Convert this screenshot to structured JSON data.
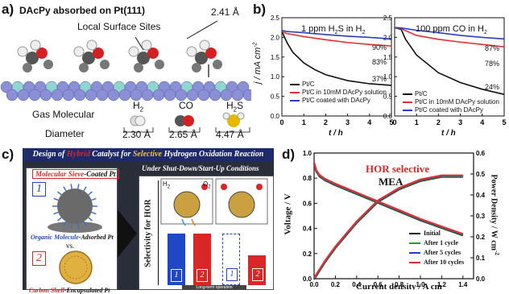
{
  "panel_a": {
    "label": "a)",
    "title": "DAcPy absorbed on Pt(111)",
    "site_label": "Local Surface Sites",
    "distance": "2.41 Å",
    "gas_row_label": "Gas Molecular",
    "diameter_row_label": "Diameter",
    "molecules": [
      {
        "name": "H",
        "sub": "2",
        "diameter": "2.30 Å"
      },
      {
        "name": "CO",
        "sub": "",
        "diameter": "2.65 Å"
      },
      {
        "name": "H",
        "sub": "2",
        "tail": "S",
        "diameter": "4.47 Å"
      }
    ],
    "colors": {
      "pt_atom": "#8a8fd6",
      "pt_light": "#8fd6cf",
      "oxygen": "#d42020",
      "carbon": "#555555",
      "sulfur": "#e6b800"
    }
  },
  "panel_b": {
    "label": "b)",
    "ylabel": "j / mA cm",
    "ylabel_sup": "-2",
    "chart_data": [
      {
        "type": "line",
        "title": "1 ppm H2S in H2",
        "title_parts": {
          "a": "1 ppm H",
          "b": "2",
          "c": "S in H",
          "d": "2"
        },
        "xlabel": "t / h",
        "x_ticks": [
          0,
          1,
          2,
          3,
          4,
          5
        ],
        "y_ticks": [
          0.0,
          0.5,
          1.0,
          1.5,
          2.0,
          2.5
        ],
        "xlim": [
          0,
          5
        ],
        "ylim": [
          0,
          2.5
        ],
        "series": [
          {
            "name": "Pt/C",
            "color": "#111111",
            "x": [
              0,
              0.25,
              0.5,
              1,
              1.5,
              2,
              3,
              4,
              5
            ],
            "y": [
              2.15,
              1.85,
              1.62,
              1.35,
              1.18,
              1.05,
              0.9,
              0.82,
              0.78
            ]
          },
          {
            "name": "Pt/C in 10mM DAcPy solution",
            "color": "#e03030",
            "x": [
              0,
              0.2,
              1,
              2,
              3,
              4,
              5
            ],
            "y": [
              2.15,
              2.1,
              2.02,
              1.94,
              1.87,
              1.82,
              1.78
            ]
          },
          {
            "name": "Pt/C coated with DAcPy",
            "color": "#2a3fbf",
            "x": [
              0,
              0.2,
              1,
              2,
              3,
              4,
              5
            ],
            "y": [
              2.18,
              2.15,
              2.12,
              2.07,
              2.03,
              2.0,
              1.96
            ]
          }
        ],
        "annotations": [
          "90%",
          "83%",
          "37%"
        ]
      },
      {
        "type": "line",
        "title": "100 ppm CO in H2",
        "title_parts": {
          "a": "100 ppm CO in H",
          "b": "2"
        },
        "xlabel": "t / h",
        "x_ticks": [
          0,
          1,
          2,
          3,
          4,
          5
        ],
        "y_ticks": [
          0.0,
          0.5,
          1.0,
          1.5,
          2.0,
          2.5
        ],
        "xlim": [
          0,
          5
        ],
        "ylim": [
          0,
          2.5
        ],
        "series": [
          {
            "name": "Pt/C",
            "color": "#111111",
            "x": [
              0,
              0.3,
              0.5,
              1,
              2,
              3,
              4,
              5
            ],
            "y": [
              2.25,
              2.2,
              1.95,
              1.55,
              1.1,
              0.85,
              0.68,
              0.55
            ]
          },
          {
            "name": "Pt/C in 10mM DAcPy solution",
            "color": "#e03030",
            "x": [
              0,
              0.3,
              1,
              2,
              3,
              4,
              5
            ],
            "y": [
              2.25,
              2.22,
              2.05,
              1.95,
              1.88,
              1.82,
              1.76
            ]
          },
          {
            "name": "Pt/C coated with DAcPy",
            "color": "#2a3fbf",
            "x": [
              0,
              0.3,
              1,
              2,
              3,
              4,
              5
            ],
            "y": [
              2.25,
              2.24,
              2.18,
              2.12,
              2.05,
              2.0,
              1.96
            ]
          }
        ],
        "annotations": [
          "87%",
          "78%",
          "24%"
        ]
      }
    ]
  },
  "panel_c": {
    "label": "c)",
    "header": {
      "w1": "Design of ",
      "w2": "Hybrid",
      "w3": " Catalyst for ",
      "w4": "Selective",
      "w5": " Hydrogen Oxidation Reaction"
    },
    "left_title": {
      "a": "Molecular Sieve",
      "b": "-Coated Pt"
    },
    "item1": {
      "num": "1",
      "caption_a": "Organic Molecule",
      "caption_b": "-Adsorbed Pt"
    },
    "vs": "vs.",
    "item2": {
      "num": "2",
      "caption_a": "Carbon Shell",
      "caption_b": "-Encapsulated Pt"
    },
    "right_title": "Under Shut-Down/Start-Up Conditions",
    "axis_label": "Selectivity for HOR",
    "gas_h2": "H",
    "gas_o2": "O",
    "gas_sub": "2",
    "bar_labels": [
      "1",
      "2",
      "1",
      "2"
    ],
    "bar_levels": [
      0.55,
      0.55,
      0.55,
      0.32
    ],
    "footer": "Long-term operation",
    "colors": {
      "header_bg": "#1f2a6b",
      "accent_red": "#d92626",
      "accent_yellow": "#f2c230",
      "bar_blue": "#2148c4",
      "bar_red": "#d92626"
    }
  },
  "panel_d": {
    "label": "d)",
    "headline": "HOR selective",
    "subtitle": "MEA",
    "ylabel_left": "Voltage / V",
    "ylabel_right": "Power Density / W cm",
    "ylabel_right_sup": "-2",
    "xlabel": "Current density / A cm",
    "chart_data": {
      "type": "line",
      "x_ticks": [
        0.0,
        0.2,
        0.4,
        0.6,
        0.8,
        1.0,
        1.2,
        1.4
      ],
      "y_left_ticks": [
        0.0,
        0.2,
        0.4,
        0.6,
        0.8,
        1.0
      ],
      "y_right_ticks": [
        0.0,
        0.1,
        0.2,
        0.3,
        0.4,
        0.5,
        0.6
      ],
      "xlim": [
        0,
        1.5
      ],
      "ylim_left": [
        0,
        1.0
      ],
      "ylim_right": [
        0,
        0.6
      ],
      "polarization": {
        "x": [
          0,
          0.02,
          0.05,
          0.1,
          0.2,
          0.4,
          0.6,
          0.8,
          1.0,
          1.2,
          1.4
        ],
        "y": [
          0.92,
          0.86,
          0.82,
          0.79,
          0.75,
          0.68,
          0.61,
          0.54,
          0.47,
          0.41,
          0.35
        ]
      },
      "power": {
        "x": [
          0,
          0.1,
          0.2,
          0.4,
          0.6,
          0.8,
          1.0,
          1.2,
          1.4
        ],
        "y": [
          0,
          0.08,
          0.15,
          0.27,
          0.37,
          0.43,
          0.47,
          0.49,
          0.49
        ]
      },
      "series": [
        {
          "name": "Initial",
          "color": "#111111"
        },
        {
          "name": "After 1 cycle",
          "color": "#22a022"
        },
        {
          "name": "After 5 cycles",
          "color": "#2a3fbf"
        },
        {
          "name": "After 10 cycles",
          "color": "#e03030"
        }
      ]
    }
  }
}
